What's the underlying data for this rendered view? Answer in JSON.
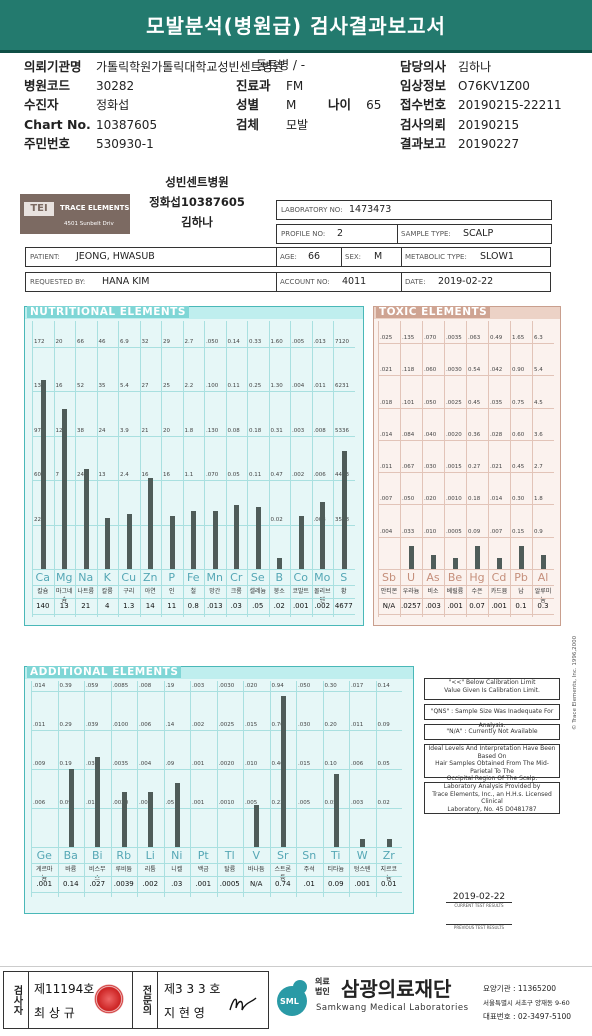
{
  "header": {
    "title": "모발분석(병원급) 검사결과보고서"
  },
  "patient_info": {
    "left": [
      {
        "label": "의뢰기관명",
        "value": "가톨릭학원가톨릭대학교성빈센트병원"
      },
      {
        "label": "병원코드",
        "value": "30282"
      },
      {
        "label": "수진자",
        "value": "정화섭"
      },
      {
        "label": "Chart No.",
        "value": "10387605"
      },
      {
        "label": "주민번호",
        "value": "530930-1"
      }
    ],
    "ward": "동트병 / -",
    "mid": [
      {
        "label": "진료과",
        "value": "FM"
      },
      {
        "label": "성별",
        "value": "M"
      },
      {
        "label": "검체",
        "value": "모발"
      }
    ],
    "age": {
      "label": "나이",
      "value": "65"
    },
    "right": [
      {
        "label": "담당의사",
        "value": "김하나"
      },
      {
        "label": "임상정보",
        "value": "O76KV1Z00"
      },
      {
        "label": "접수번호",
        "value": "20190215-22211"
      },
      {
        "label": "검사의뢰",
        "value": "20190215"
      },
      {
        "label": "결과보고",
        "value": "20190227"
      }
    ]
  },
  "sticker": {
    "line1": "성빈센트병원",
    "line2": "정화섭10387605",
    "line3": "김하나"
  },
  "lab": {
    "logo": "TEI",
    "company": "TRACE ELEMENTS",
    "address": "4501 Sunbelt Driv",
    "lab_no_label": "LABORATORY NO:",
    "lab_no": "1473473",
    "profile_label": "PROFILE NO:",
    "profile": "2",
    "sample_label": "SAMPLE TYPE:",
    "sample": "SCALP",
    "patient_label": "PATIENT:",
    "patient": "JEONG, HWASUB",
    "age_label": "AGE:",
    "age": "66",
    "sex_label": "SEX:",
    "sex": "M",
    "metabolic_label": "METABOLIC TYPE:",
    "metabolic": "SLOW1",
    "requested_label": "REQUESTED BY:",
    "requested": "HANA KIM",
    "account_label": "ACCOUNT NO:",
    "account": "4011",
    "date_label": "DATE:",
    "date": "2019-02-22"
  },
  "nutritional": {
    "title": "NUTRITIONAL ELEMENTS",
    "elements": [
      "Ca",
      "Mg",
      "Na",
      "K",
      "Cu",
      "Zn",
      "P",
      "Fe",
      "Mn",
      "Cr",
      "Se",
      "B",
      "Co",
      "Mo",
      "S"
    ],
    "korean": [
      "칼슘",
      "마그네슘",
      "나트륨",
      "칼륨",
      "구리",
      "아연",
      "인",
      "철",
      "망간",
      "크롬",
      "셀레늄",
      "붕소",
      "코발트",
      "몰리브덴",
      "황"
    ],
    "results": [
      "140",
      "13",
      "21",
      "4",
      "1.3",
      "14",
      "11",
      "0.8",
      ".013",
      ".03",
      ".05",
      ".02",
      ".001",
      ".002",
      "4677"
    ],
    "top_ticks": [
      "172",
      "20",
      "66",
      "46",
      "6.9",
      "32",
      "29",
      "2.7",
      ".050",
      "0.14",
      "0.33",
      "1.60",
      ".005",
      ".013",
      "7120"
    ],
    "ticks": [
      [
        "135",
        "16",
        "52",
        "35",
        "5.4",
        "27",
        "25",
        "2.2",
        ".100",
        "0.11",
        "0.25",
        "1.30",
        ".004",
        ".011",
        "6231"
      ],
      [
        "97",
        "12",
        "38",
        "24",
        "3.9",
        "21",
        "20",
        "1.8",
        ".130",
        "0.08",
        "0.18",
        "0.31",
        ".003",
        ".008",
        "5336"
      ],
      [
        "60",
        "7",
        "24",
        "13",
        "2.4",
        "16",
        "16",
        "1.1",
        ".070",
        "0.05",
        "0.11",
        "0.47",
        ".002",
        ".006",
        "4443"
      ],
      [
        "22",
        "",
        "",
        "",
        "",
        "",
        "",
        "",
        "",
        "",
        "",
        "0.02",
        "",
        ".003",
        "3548"
      ]
    ],
    "fill": [
      0.85,
      0.72,
      0.45,
      0.23,
      0.25,
      0.41,
      0.24,
      0.26,
      0.26,
      0.29,
      0.28,
      0.05,
      0.24,
      0.3,
      0.53
    ]
  },
  "toxic": {
    "title": "TOXIC ELEMENTS",
    "elements": [
      "Sb",
      "U",
      "As",
      "Be",
      "Hg",
      "Cd",
      "Pb",
      "Al"
    ],
    "korean": [
      "안티몬",
      "우라늄",
      "비소",
      "베릴륨",
      "수은",
      "카드뮴",
      "납",
      "알루미늄"
    ],
    "results": [
      "N/A",
      ".0257",
      ".003",
      ".001",
      "0.07",
      ".001",
      "0.1",
      "0.3"
    ],
    "top_ticks": [
      ".025",
      ".135",
      ".070",
      ".0035",
      ".063",
      "0.49",
      "1.65",
      "6.3"
    ],
    "ticks": [
      [
        ".021",
        ".118",
        ".060",
        ".0030",
        "0.54",
        ".042",
        "0.90",
        "5.4"
      ],
      [
        ".018",
        ".101",
        ".050",
        ".0025",
        "0.45",
        ".035",
        "0.75",
        "4.5"
      ],
      [
        ".014",
        ".084",
        ".040",
        ".0020",
        "0.36",
        ".028",
        "0.60",
        "3.6"
      ],
      [
        ".011",
        ".067",
        ".030",
        ".0015",
        "0.27",
        ".021",
        "0.45",
        "2.7"
      ],
      [
        ".007",
        ".050",
        ".020",
        ".0010",
        "0.18",
        ".014",
        "0.30",
        "1.8"
      ],
      [
        ".004",
        ".033",
        ".010",
        ".0005",
        "0.09",
        ".007",
        "0.15",
        "0.9"
      ]
    ],
    "fill": [
      0,
      0.1,
      0.06,
      0.05,
      0.1,
      0.05,
      0.1,
      0.06
    ]
  },
  "additional": {
    "title": "ADDITIONAL ELEMENTS",
    "elements": [
      "Ge",
      "Ba",
      "Bi",
      "Rb",
      "Li",
      "Ni",
      "Pt",
      "Tl",
      "V",
      "Sr",
      "Sn",
      "Ti",
      "W",
      "Zr"
    ],
    "korean": [
      "게르마늄",
      "바륨",
      "비스무스",
      "루비듐",
      "리튬",
      "니켈",
      "백금",
      "탈륨",
      "바나듐",
      "스트론튬",
      "주석",
      "티타늄",
      "텅스텐",
      "지르코늄"
    ],
    "results": [
      ".001",
      "0.14",
      ".027",
      ".0039",
      ".002",
      ".03",
      ".001",
      ".0005",
      "N/A",
      "0.74",
      ".01",
      "0.09",
      ".001",
      "0.01"
    ],
    "top_ticks": [
      ".014",
      "0.39",
      ".059",
      ".0085",
      ".008",
      ".19",
      ".003",
      ".0030",
      ".020",
      "0.94",
      ".050",
      "0.30",
      ".017",
      "0.14"
    ],
    "ticks": [
      [
        ".011",
        "0.29",
        ".039",
        ".0100",
        ".006",
        ".14",
        ".002",
        ".0025",
        ".015",
        "0.70",
        ".030",
        "0.20",
        ".011",
        "0.09"
      ],
      [
        ".009",
        "0.19",
        ".039",
        ".0035",
        ".004",
        ".09",
        ".001",
        ".0020",
        ".010",
        "0.46",
        ".015",
        "0.10",
        ".006",
        "0.05"
      ],
      [
        ".006",
        "0.09",
        ".019",
        ".0020",
        ".002",
        ".05",
        ".001",
        ".0010",
        ".005",
        "0.22",
        ".005",
        "0.05",
        ".003",
        "0.02"
      ]
    ],
    "fill": [
      0,
      0.5,
      0.58,
      0.35,
      0.35,
      0.41,
      0,
      0,
      0.27,
      0.97,
      0,
      0.47,
      0.05,
      0.05
    ]
  },
  "legend": {
    "l1": "\"<<\" Below Calibration Limit",
    "l2": "Value Given Is Calibration Limit.",
    "l3": "\"QNS\" : Sample Size Was Inadequate For Analysis.",
    "l4": "\"N/A\" : Currently Not Available",
    "l5": "Ideal Levels And Interpretation Have Been Based On",
    "l6": "Hair Samples Obtained From The Mid-Parietal To The",
    "l7": "Occipital Region Of The Scalp.",
    "l8": "Laboratory Analysis Provided by",
    "l9": "Trace Elements, Inc., an H.H.s. Licensed Clinical",
    "l10": "Laboratory, No. 45 D0481787"
  },
  "report_date": {
    "date": "2019-02-22",
    "cur_label": "CURRENT TEST RESULTS",
    "prev_label": "PREVIOUS TEST RESULTS"
  },
  "copyright": "© Trace Elements, Inc. 1996,2000",
  "footer": {
    "tester_label": "검사자",
    "tester_no": "제11194호",
    "tester_name": "최 상 규",
    "specialist_label": "전문의",
    "specialist_no": "제3 3 3 호",
    "specialist_name": "지 현 영",
    "sml": "SML",
    "corp_label1": "의료",
    "corp_label2": "법인",
    "company_ko": "삼광의료재단",
    "company_en": "Samkwang Medical Laboratories",
    "biz_no": "요양기관 : 11365200",
    "address": "서울특별시 서초구 양재동 9-60",
    "tel": "대표번호 : 02-3497-5100"
  }
}
